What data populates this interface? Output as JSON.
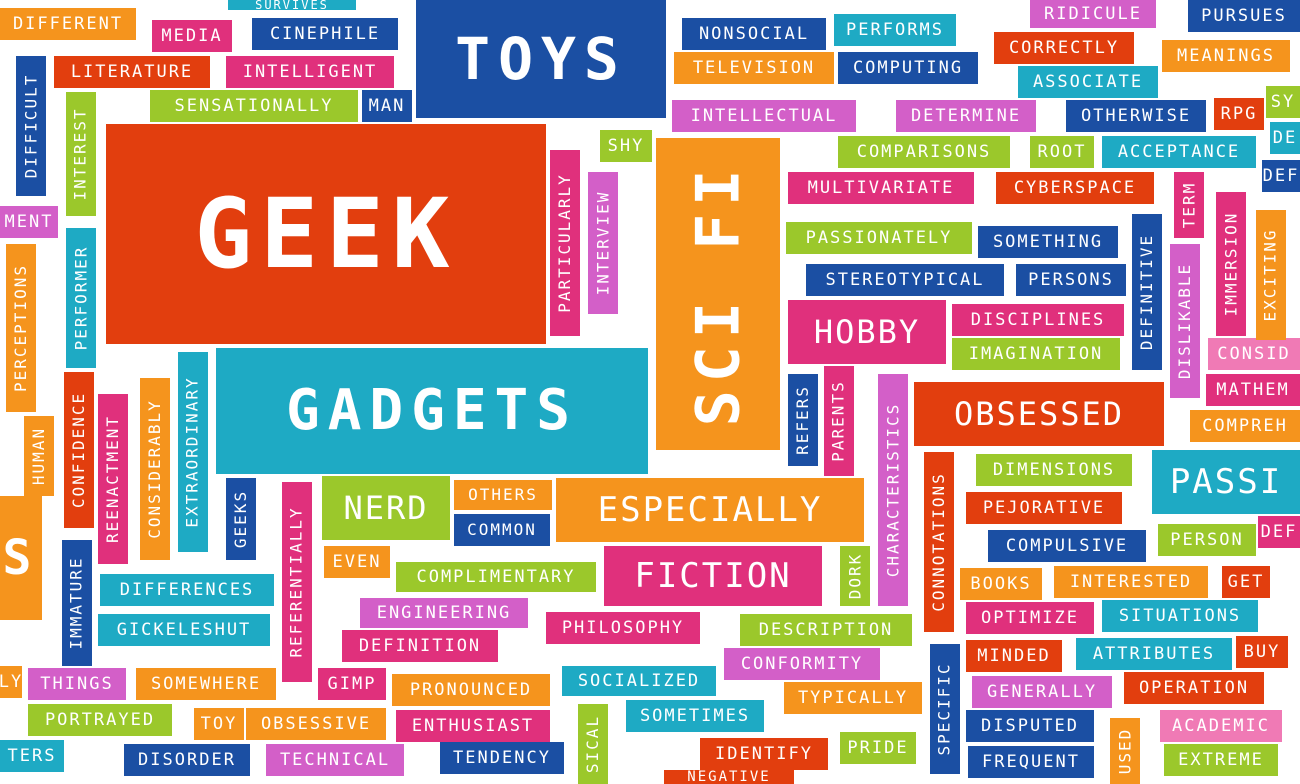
{
  "colors": {
    "red_orange": "#e23e0e",
    "orange": "#f5941d",
    "teal": "#1eaac4",
    "blue": "#1b4fa3",
    "magenta": "#e0307c",
    "pink": "#f07ab5",
    "lime": "#9bc82b",
    "violet": "#d35fc8",
    "green": "#6dbf3e"
  },
  "words": [
    {
      "text": "GEEK",
      "color": "red_orange"
    },
    {
      "text": "GADGETS",
      "color": "teal"
    },
    {
      "text": "TOYS",
      "color": "blue"
    },
    {
      "text": "SCI FI",
      "color": "orange"
    },
    {
      "text": "OBSESSED",
      "color": "red_orange"
    },
    {
      "text": "ESPECIALLY",
      "color": "orange"
    },
    {
      "text": "FICTION",
      "color": "magenta"
    },
    {
      "text": "NERD",
      "color": "lime"
    },
    {
      "text": "HOBBY",
      "color": "magenta"
    },
    {
      "text": "PASSI",
      "color": "teal"
    },
    {
      "text": "DIFFERENT",
      "color": "orange"
    },
    {
      "text": "MEDIA",
      "color": "magenta"
    },
    {
      "text": "CINEPHILE",
      "color": "blue"
    },
    {
      "text": "SURVIVES",
      "color": "teal"
    },
    {
      "text": "LITERATURE",
      "color": "red_orange"
    },
    {
      "text": "INTELLIGENT",
      "color": "magenta"
    },
    {
      "text": "SENSATIONALLY",
      "color": "lime"
    },
    {
      "text": "MAN",
      "color": "blue"
    },
    {
      "text": "NONSOCIAL",
      "color": "blue"
    },
    {
      "text": "PERFORMS",
      "color": "teal"
    },
    {
      "text": "TELEVISION",
      "color": "orange"
    },
    {
      "text": "COMPUTING",
      "color": "blue"
    },
    {
      "text": "INTELLECTUAL",
      "color": "violet"
    },
    {
      "text": "DETERMINE",
      "color": "violet"
    },
    {
      "text": "OTHERWISE",
      "color": "blue"
    },
    {
      "text": "RPG",
      "color": "red_orange"
    },
    {
      "text": "RIDICULE",
      "color": "violet"
    },
    {
      "text": "PURSUES",
      "color": "blue"
    },
    {
      "text": "CORRECTLY",
      "color": "red_orange"
    },
    {
      "text": "MEANINGS",
      "color": "orange"
    },
    {
      "text": "ASSOCIATE",
      "color": "teal"
    },
    {
      "text": "SHY",
      "color": "lime"
    },
    {
      "text": "COMPARISONS",
      "color": "lime"
    },
    {
      "text": "ROOT",
      "color": "lime"
    },
    {
      "text": "ACCEPTANCE",
      "color": "teal"
    },
    {
      "text": "MULTIVARIATE",
      "color": "magenta"
    },
    {
      "text": "CYBERSPACE",
      "color": "red_orange"
    },
    {
      "text": "PASSIONATELY",
      "color": "lime"
    },
    {
      "text": "SOMETHING",
      "color": "blue"
    },
    {
      "text": "STEREOTYPICAL",
      "color": "blue"
    },
    {
      "text": "PERSONS",
      "color": "blue"
    },
    {
      "text": "DISCIPLINES",
      "color": "magenta"
    },
    {
      "text": "IMAGINATION",
      "color": "lime"
    },
    {
      "text": "DIMENSIONS",
      "color": "lime"
    },
    {
      "text": "PEJORATIVE",
      "color": "red_orange"
    },
    {
      "text": "COMPULSIVE",
      "color": "blue"
    },
    {
      "text": "PERSON",
      "color": "lime"
    },
    {
      "text": "BOOKS",
      "color": "orange"
    },
    {
      "text": "INTERESTED",
      "color": "orange"
    },
    {
      "text": "GET",
      "color": "red_orange"
    },
    {
      "text": "OPTIMIZE",
      "color": "magenta"
    },
    {
      "text": "SITUATIONS",
      "color": "teal"
    },
    {
      "text": "MINDED",
      "color": "red_orange"
    },
    {
      "text": "ATTRIBUTES",
      "color": "teal"
    },
    {
      "text": "BUY",
      "color": "red_orange"
    },
    {
      "text": "GENERALLY",
      "color": "violet"
    },
    {
      "text": "OPERATION",
      "color": "red_orange"
    },
    {
      "text": "DISPUTED",
      "color": "blue"
    },
    {
      "text": "ACADEMIC",
      "color": "pink"
    },
    {
      "text": "FREQUENT",
      "color": "blue"
    },
    {
      "text": "EXTREME",
      "color": "lime"
    },
    {
      "text": "OTHERS",
      "color": "orange"
    },
    {
      "text": "COMMON",
      "color": "blue"
    },
    {
      "text": "EVEN",
      "color": "orange"
    },
    {
      "text": "COMPLIMENTARY",
      "color": "lime"
    },
    {
      "text": "ENGINEERING",
      "color": "violet"
    },
    {
      "text": "DEFINITION",
      "color": "magenta"
    },
    {
      "text": "PHILOSOPHY",
      "color": "magenta"
    },
    {
      "text": "DESCRIPTION",
      "color": "lime"
    },
    {
      "text": "CONFORMITY",
      "color": "violet"
    },
    {
      "text": "SOCIALIZED",
      "color": "teal"
    },
    {
      "text": "TYPICALLY",
      "color": "orange"
    },
    {
      "text": "SOMETIMES",
      "color": "teal"
    },
    {
      "text": "PRONOUNCED",
      "color": "orange"
    },
    {
      "text": "ENTHUSIAST",
      "color": "magenta"
    },
    {
      "text": "TENDENCY",
      "color": "blue"
    },
    {
      "text": "IDENTIFY",
      "color": "red_orange"
    },
    {
      "text": "PRIDE",
      "color": "lime"
    },
    {
      "text": "DIFFERENCES",
      "color": "teal"
    },
    {
      "text": "GICKELESHUT",
      "color": "teal"
    },
    {
      "text": "THINGS",
      "color": "violet"
    },
    {
      "text": "SOMEWHERE",
      "color": "orange"
    },
    {
      "text": "GIMP",
      "color": "magenta"
    },
    {
      "text": "PORTRAYED",
      "color": "lime"
    },
    {
      "text": "TOY",
      "color": "orange"
    },
    {
      "text": "OBSESSIVE",
      "color": "orange"
    },
    {
      "text": "TECHNICAL",
      "color": "violet"
    },
    {
      "text": "DISORDER",
      "color": "blue"
    },
    {
      "text": "TERS",
      "color": "teal"
    },
    {
      "text": "LY",
      "color": "orange"
    },
    {
      "text": "MENT",
      "color": "violet"
    },
    {
      "text": "CONSID",
      "color": "pink"
    },
    {
      "text": "MATHEM",
      "color": "magenta"
    },
    {
      "text": "COMPREH",
      "color": "orange"
    },
    {
      "text": "DEF",
      "color": "magenta"
    },
    {
      "text": "SY",
      "color": "lime"
    },
    {
      "text": "DE",
      "color": "teal"
    },
    {
      "text": "DEF",
      "color": "blue"
    },
    {
      "text": "NEGATIVE",
      "color": "red_orange"
    },
    {
      "text": "DIFFICULT",
      "color": "blue"
    },
    {
      "text": "INTEREST",
      "color": "lime"
    },
    {
      "text": "PERCEPTIONS",
      "color": "orange"
    },
    {
      "text": "PERFORMER",
      "color": "teal"
    },
    {
      "text": "HUMAN",
      "color": "orange"
    },
    {
      "text": "CONFIDENCE",
      "color": "red_orange"
    },
    {
      "text": "REENACTMENT",
      "color": "magenta"
    },
    {
      "text": "CONSIDERABLY",
      "color": "orange"
    },
    {
      "text": "EXTRAORDINARY",
      "color": "teal"
    },
    {
      "text": "GEEKS",
      "color": "blue"
    },
    {
      "text": "IMMATURE",
      "color": "blue"
    },
    {
      "text": "REFERENTIALLY",
      "color": "magenta"
    },
    {
      "text": "PARTICULARLY",
      "color": "magenta"
    },
    {
      "text": "INTERVIEW",
      "color": "violet"
    },
    {
      "text": "REFERS",
      "color": "blue"
    },
    {
      "text": "PARENTS",
      "color": "magenta"
    },
    {
      "text": "CHARACTERISTICS",
      "color": "violet"
    },
    {
      "text": "DORK",
      "color": "lime"
    },
    {
      "text": "CONNOTATIONS",
      "color": "red_orange"
    },
    {
      "text": "SPECIFIC",
      "color": "blue"
    },
    {
      "text": "DEFINITIVE",
      "color": "blue"
    },
    {
      "text": "TERM",
      "color": "magenta"
    },
    {
      "text": "DISLIKABLE",
      "color": "violet"
    },
    {
      "text": "IMMERSION",
      "color": "magenta"
    },
    {
      "text": "EXCITING",
      "color": "orange"
    },
    {
      "text": "USED",
      "color": "orange"
    },
    {
      "text": "SICAL",
      "color": "lime"
    },
    {
      "text": "S",
      "color": "orange"
    }
  ]
}
